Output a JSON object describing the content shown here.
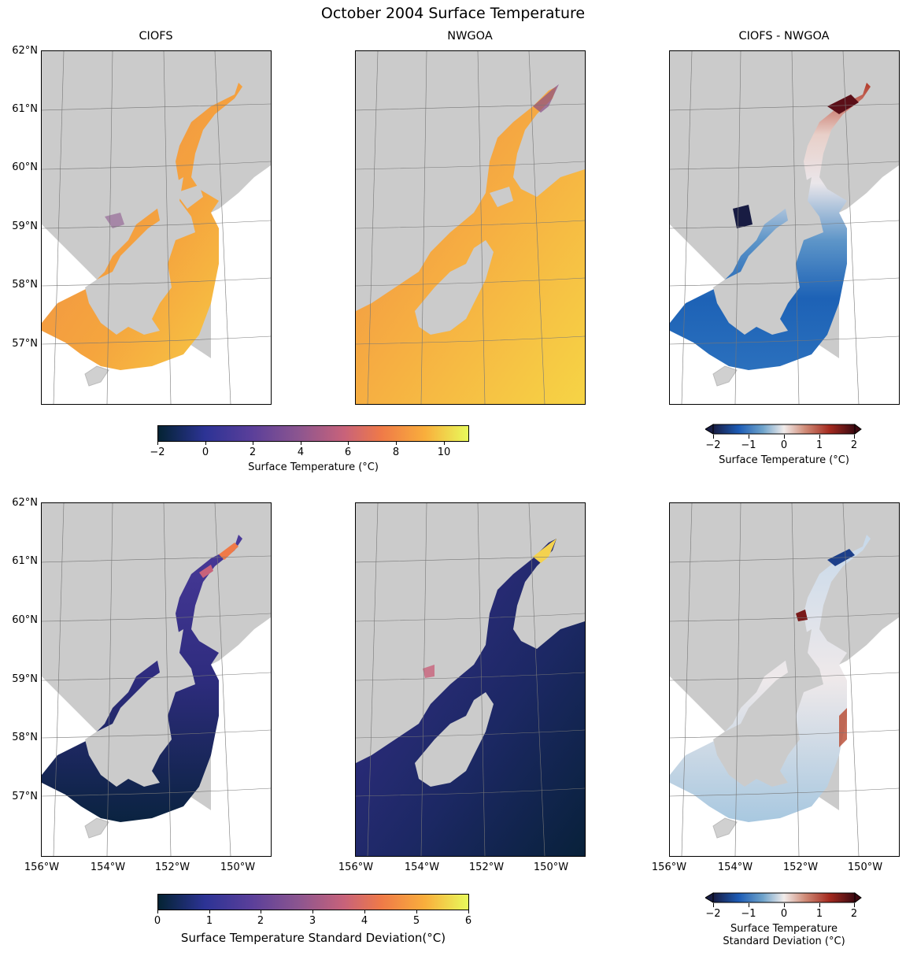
{
  "title": "October 2004 Surface Temperature",
  "panel_titles": [
    "CIOFS",
    "NWGOA",
    "CIOFS - NWGOA"
  ],
  "lat_labels": [
    "62°N",
    "61°N",
    "60°N",
    "59°N",
    "58°N",
    "57°N"
  ],
  "lon_labels": [
    "156°W",
    "154°W",
    "152°W",
    "150°W"
  ],
  "colorbars": {
    "temp": {
      "ticks": [
        "−2",
        "0",
        "2",
        "4",
        "6",
        "8",
        "10"
      ],
      "label": "Surface Temperature (°C)",
      "colormap": "thermal",
      "range": [
        -2,
        11
      ]
    },
    "temp_diff": {
      "ticks": [
        "−2",
        "−1",
        "0",
        "1",
        "2"
      ],
      "label": "Surface Temperature (°C)",
      "colormap": "balance",
      "range": [
        -2,
        2
      ]
    },
    "std": {
      "ticks": [
        "0",
        "1",
        "2",
        "3",
        "4",
        "5",
        "6"
      ],
      "label": "Surface Temperature Standard Deviation(°C)",
      "colormap": "thermal",
      "range": [
        0,
        6
      ]
    },
    "std_diff": {
      "ticks": [
        "−2",
        "−1",
        "0",
        "1",
        "2"
      ],
      "label_line1": "Surface Temperature",
      "label_line2": "Standard Deviation (°C)",
      "colormap": "balance",
      "range": [
        -2,
        2
      ]
    }
  },
  "colors": {
    "land": "#cbcbcb",
    "no_data": "#ffffff"
  }
}
